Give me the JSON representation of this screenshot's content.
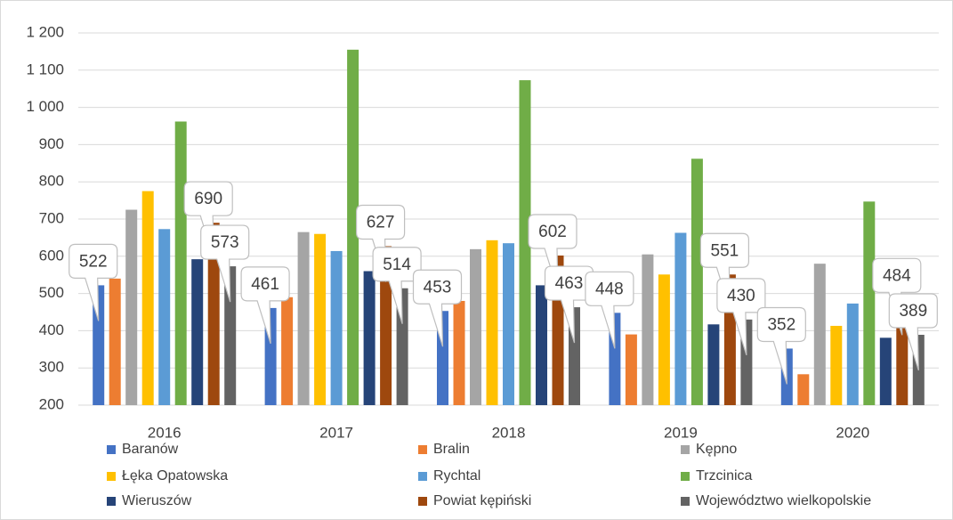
{
  "chart_data": {
    "type": "bar",
    "categories": [
      "2016",
      "2017",
      "2018",
      "2019",
      "2020"
    ],
    "series": [
      {
        "name": "Baranów",
        "color": "#4472c4",
        "values": [
          522,
          461,
          453,
          448,
          352
        ],
        "labels": true
      },
      {
        "name": "Bralin",
        "color": "#ed7d31",
        "values": [
          540,
          490,
          480,
          390,
          283
        ]
      },
      {
        "name": "Kępno",
        "color": "#a5a5a5",
        "values": [
          725,
          665,
          619,
          605,
          580
        ]
      },
      {
        "name": "Łęka Opatowska",
        "color": "#ffc000",
        "values": [
          775,
          660,
          643,
          551,
          413
        ]
      },
      {
        "name": "Rychtal",
        "color": "#5b9bd5",
        "values": [
          673,
          614,
          635,
          663,
          473
        ]
      },
      {
        "name": "Trzcinica",
        "color": "#70ad47",
        "values": [
          962,
          1155,
          1073,
          862,
          747
        ]
      },
      {
        "name": "Wieruszów",
        "color": "#264478",
        "values": [
          592,
          560,
          522,
          417,
          381
        ]
      },
      {
        "name": "Powiat kępiński",
        "color": "#9e480e",
        "values": [
          690,
          627,
          602,
          551,
          484
        ],
        "labels": true
      },
      {
        "name": "Województwo wielkopolskie",
        "color": "#636363",
        "values": [
          573,
          514,
          463,
          430,
          389
        ],
        "labels": true
      }
    ],
    "ylim": [
      200,
      1200
    ],
    "yticks": [
      200,
      300,
      400,
      500,
      600,
      700,
      800,
      900,
      {
        "value": 1000,
        "label": "1 000"
      },
      {
        "value": 1100,
        "label": "1 100"
      },
      {
        "value": 1200,
        "label": "1 200"
      }
    ],
    "grid": true,
    "legend": "bottom"
  }
}
